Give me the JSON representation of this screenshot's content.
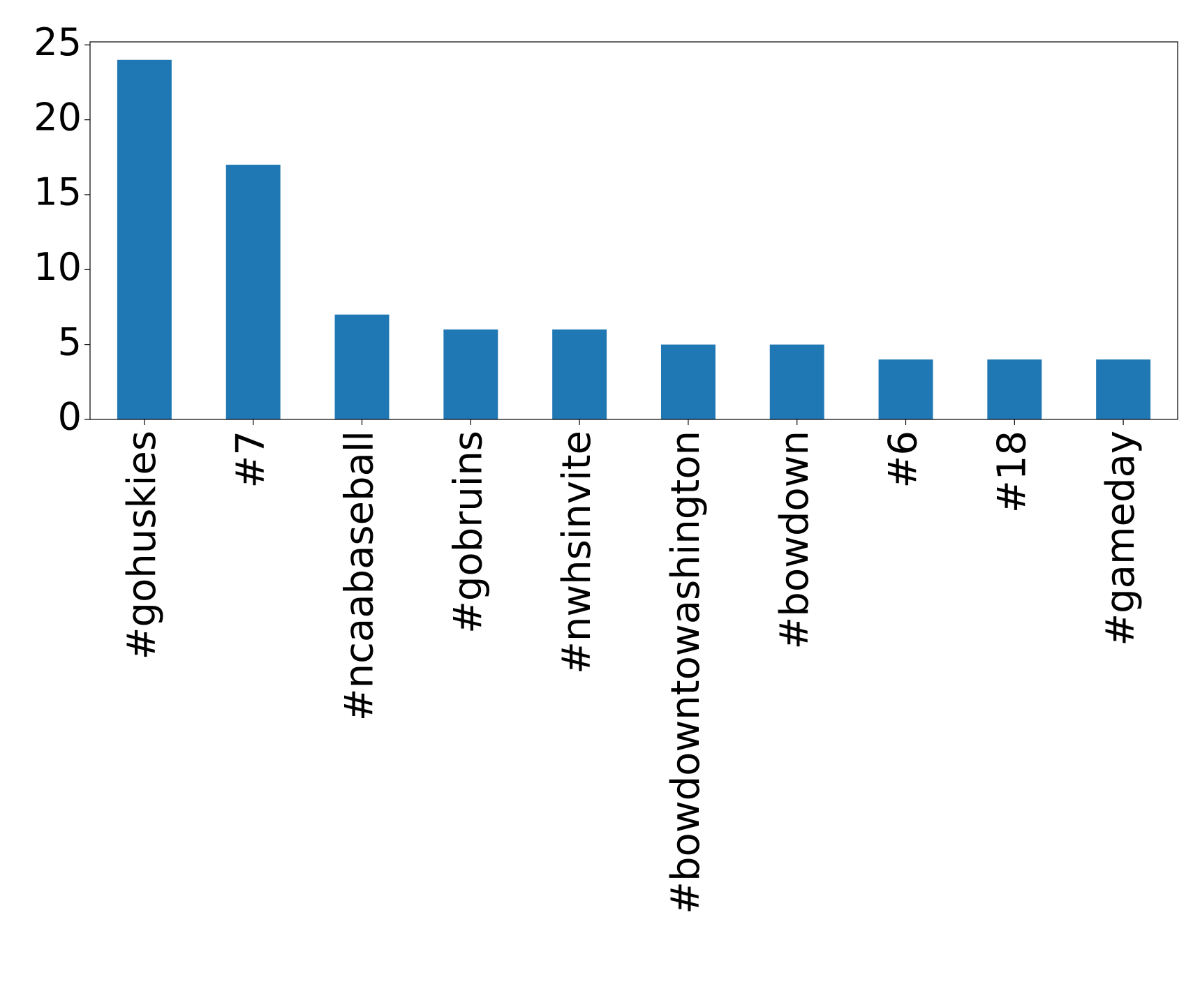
{
  "chart_data": {
    "type": "bar",
    "categories": [
      "#gohuskies",
      "#7",
      "#ncaabaseball",
      "#gobruins",
      "#nwhsinvite",
      "#bowdowntowashington",
      "#bowdown",
      "#6",
      "#18",
      "#gameday"
    ],
    "values": [
      24,
      17,
      7,
      6,
      6,
      5,
      5,
      4,
      4,
      4
    ],
    "color": "#1f77b4",
    "ylim": [
      0,
      25.2
    ],
    "yticks": [
      0,
      5,
      10,
      15,
      20,
      25
    ],
    "grid": false
  }
}
